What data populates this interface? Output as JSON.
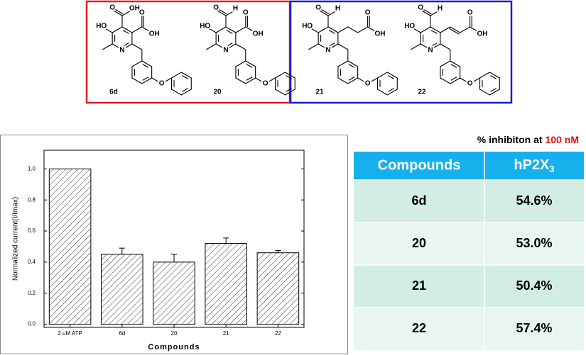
{
  "structures": [
    {
      "label": "6d",
      "atoms": [
        "O",
        "OH",
        "O",
        "OH",
        "HO",
        "N",
        "O"
      ]
    },
    {
      "label": "20",
      "atoms": [
        "O",
        "H",
        "O",
        "OH",
        "HO",
        "N",
        "O"
      ]
    },
    {
      "label": "21",
      "atoms": [
        "O",
        "H",
        "O",
        "OH",
        "HO",
        "N",
        "O"
      ]
    },
    {
      "label": "22",
      "atoms": [
        "O",
        "H",
        "O",
        "OH",
        "HO",
        "N",
        "O"
      ]
    }
  ],
  "chart_data": {
    "type": "bar",
    "categories": [
      "2 uM ATP",
      "6d",
      "20",
      "21",
      "22"
    ],
    "values": [
      1.0,
      0.45,
      0.4,
      0.52,
      0.46
    ],
    "errors": [
      null,
      0.04,
      0.05,
      0.035,
      0.015
    ],
    "color": "#333333",
    "xlabel": "Compounds",
    "ylabel": "Normalized current(I/Imax)",
    "ylim": [
      -0.02,
      1.12
    ],
    "yticks": [
      {
        "value": 0,
        "label": "0.0"
      },
      0.2,
      0.4,
      0.6,
      0.8,
      {
        "value": 1,
        "label": "1.0"
      }
    ]
  },
  "table": {
    "note": [
      "% inhibiton at",
      "100 nM"
    ],
    "header": [
      "Compounds",
      {
        "text": "hP2X",
        "subscript": "3"
      }
    ],
    "rows": [
      [
        "6d",
        "54.6%"
      ],
      [
        "20",
        "53.0%"
      ],
      [
        "21",
        "50.4%"
      ],
      [
        "22",
        "57.4%"
      ]
    ]
  }
}
